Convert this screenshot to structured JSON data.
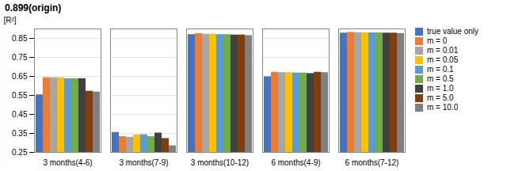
{
  "chart_data": {
    "type": "bar",
    "title": "0.899(origin)",
    "ylabel": "[R²]",
    "categories": [
      "3 months(4-6)",
      "3 months(7-9)",
      "3 months(10-12)",
      "6 months(4-9)",
      "6 months(7-12)"
    ],
    "series": [
      {
        "name": "true value only",
        "color": "#4472c4",
        "values": [
          0.553,
          0.355,
          0.87,
          0.648,
          0.878
        ]
      },
      {
        "name": "m = 0",
        "color": "#ed7d31",
        "values": [
          0.643,
          0.333,
          0.875,
          0.672,
          0.882
        ]
      },
      {
        "name": "m = 0.01",
        "color": "#a6a6a6",
        "values": [
          0.643,
          0.33,
          0.872,
          0.67,
          0.88
        ]
      },
      {
        "name": "m = 0.05",
        "color": "#ffc000",
        "values": [
          0.643,
          0.342,
          0.872,
          0.67,
          0.88
        ]
      },
      {
        "name": "m = 0.1",
        "color": "#5b9bd5",
        "values": [
          0.638,
          0.343,
          0.87,
          0.668,
          0.879
        ]
      },
      {
        "name": "m = 0.5",
        "color": "#70ad47",
        "values": [
          0.638,
          0.333,
          0.87,
          0.668,
          0.879
        ]
      },
      {
        "name": "m = 1.0",
        "color": "#404040",
        "values": [
          0.638,
          0.352,
          0.868,
          0.665,
          0.878
        ]
      },
      {
        "name": "m = 5.0",
        "color": "#843c0c",
        "values": [
          0.572,
          0.323,
          0.868,
          0.672,
          0.878
        ]
      },
      {
        "name": "m = 10.0",
        "color": "#808080",
        "values": [
          0.568,
          0.285,
          0.865,
          0.67,
          0.876
        ]
      }
    ],
    "ylim": [
      0.25,
      0.9
    ],
    "yticks": [
      0.25,
      0.35,
      0.45,
      0.55,
      0.65,
      0.75,
      0.85
    ],
    "grid": true,
    "legend": "right"
  }
}
